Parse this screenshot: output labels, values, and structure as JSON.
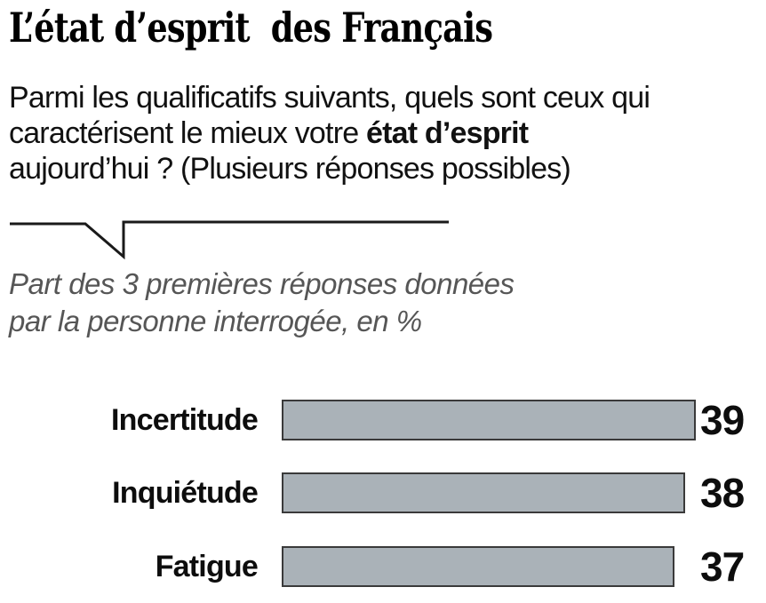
{
  "title": "L’état d’esprit  des Français",
  "question": {
    "line1": "Parmi les qualificatifs suivants, quels sont ceux qui",
    "line2_normal": "caractérisent le mieux votre ",
    "line2_bold": "état d’esprit",
    "line3": "aujourd’hui ? (Plusieurs réponses possibles)"
  },
  "note": {
    "line1": "Part des 3 premières réponses données",
    "line2": "par la personne interrogée, en %"
  },
  "chart_data": {
    "type": "bar",
    "orientation": "horizontal",
    "title": "L’état d’esprit  des Français",
    "subtitle": "Parmi les qualificatifs suivants, quels sont ceux qui caractérisent le mieux votre état d’esprit aujourd’hui ? (Plusieurs réponses possibles)",
    "annotation": "Part des 3 premières réponses données par la personne interrogée, en %",
    "categories": [
      "Incertitude",
      "Inquiétude",
      "Fatigue"
    ],
    "values": [
      39,
      38,
      37
    ],
    "unit": "%",
    "value_axis_range": [
      0,
      39
    ],
    "grid": false,
    "legend": false,
    "value_labels_position": "right-of-bar",
    "colors": {
      "bar_fill": "#aab2b8",
      "bar_border": "#3a3a3a",
      "text": "#0d0d0d",
      "note_gray": "#565656",
      "line": "#1a1a1a"
    }
  }
}
